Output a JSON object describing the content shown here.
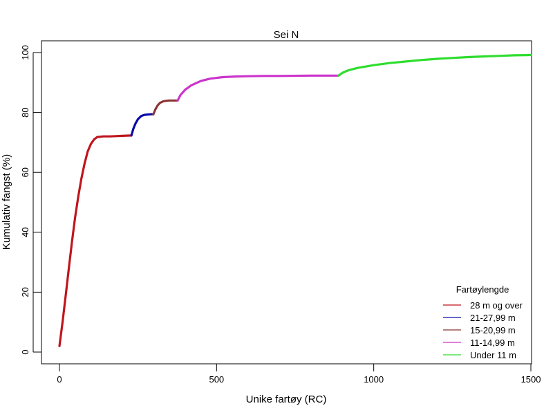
{
  "chart_data": {
    "type": "line",
    "title": "Sei N",
    "xlabel": "Unike fartøy (RC)",
    "ylabel": "Kumulativ fangst (%)",
    "xlim": [
      -60,
      1500
    ],
    "ylim": [
      -4,
      104
    ],
    "x_ticks": [
      0,
      500,
      1000,
      1500
    ],
    "y_ticks": [
      0,
      20,
      40,
      60,
      80,
      100
    ],
    "grid": false,
    "legend": {
      "title": "Fartøylengde",
      "position": "bottom-right",
      "entries": [
        {
          "label": "28 m og over",
          "color": "#c0151d"
        },
        {
          "label": "21-27,99 m",
          "color": "#0a0aa8"
        },
        {
          "label": "15-20,99 m",
          "color": "#8b3535"
        },
        {
          "label": "11-14,99 m",
          "color": "#cc33cc"
        },
        {
          "label": "Under 11 m",
          "color": "#2edd2e"
        }
      ]
    },
    "series": [
      {
        "name": "28 m og over",
        "color": "#c0151d",
        "x": [
          0,
          10,
          20,
          30,
          40,
          50,
          60,
          70,
          80,
          90,
          100,
          110,
          120,
          140,
          160,
          180,
          200,
          229
        ],
        "y": [
          2,
          10,
          19,
          28,
          37,
          45,
          52,
          58,
          63,
          67,
          69.5,
          71,
          71.8,
          72.0,
          72.0,
          72.1,
          72.2,
          72.3
        ]
      },
      {
        "name": "21-27,99 m",
        "color": "#0a0aa8",
        "x": [
          229,
          235,
          242,
          250,
          260,
          270,
          280,
          290,
          299
        ],
        "y": [
          72.3,
          74.5,
          76.3,
          77.8,
          78.8,
          79.2,
          79.3,
          79.4,
          79.4
        ]
      },
      {
        "name": "15-20,99 m",
        "color": "#8b3535",
        "x": [
          299,
          305,
          312,
          320,
          330,
          340,
          350,
          360,
          376
        ],
        "y": [
          79.4,
          81.0,
          82.3,
          83.2,
          83.7,
          83.9,
          84.0,
          84.0,
          84.0
        ]
      },
      {
        "name": "11-14,99 m",
        "color": "#cc33cc",
        "x": [
          376,
          385,
          400,
          420,
          450,
          480,
          520,
          560,
          600,
          650,
          700,
          800,
          888
        ],
        "y": [
          84.0,
          85.8,
          87.6,
          89.1,
          90.5,
          91.3,
          91.8,
          92.0,
          92.1,
          92.2,
          92.2,
          92.3,
          92.3
        ]
      },
      {
        "name": "Under 11 m",
        "color": "#2edd2e",
        "x": [
          888,
          900,
          920,
          950,
          1000,
          1050,
          1100,
          1150,
          1200,
          1250,
          1300,
          1350,
          1400,
          1450,
          1500
        ],
        "y": [
          92.3,
          93.2,
          94.1,
          94.9,
          95.8,
          96.5,
          97.0,
          97.5,
          97.9,
          98.2,
          98.5,
          98.7,
          98.9,
          99.1,
          99.2
        ]
      }
    ]
  }
}
